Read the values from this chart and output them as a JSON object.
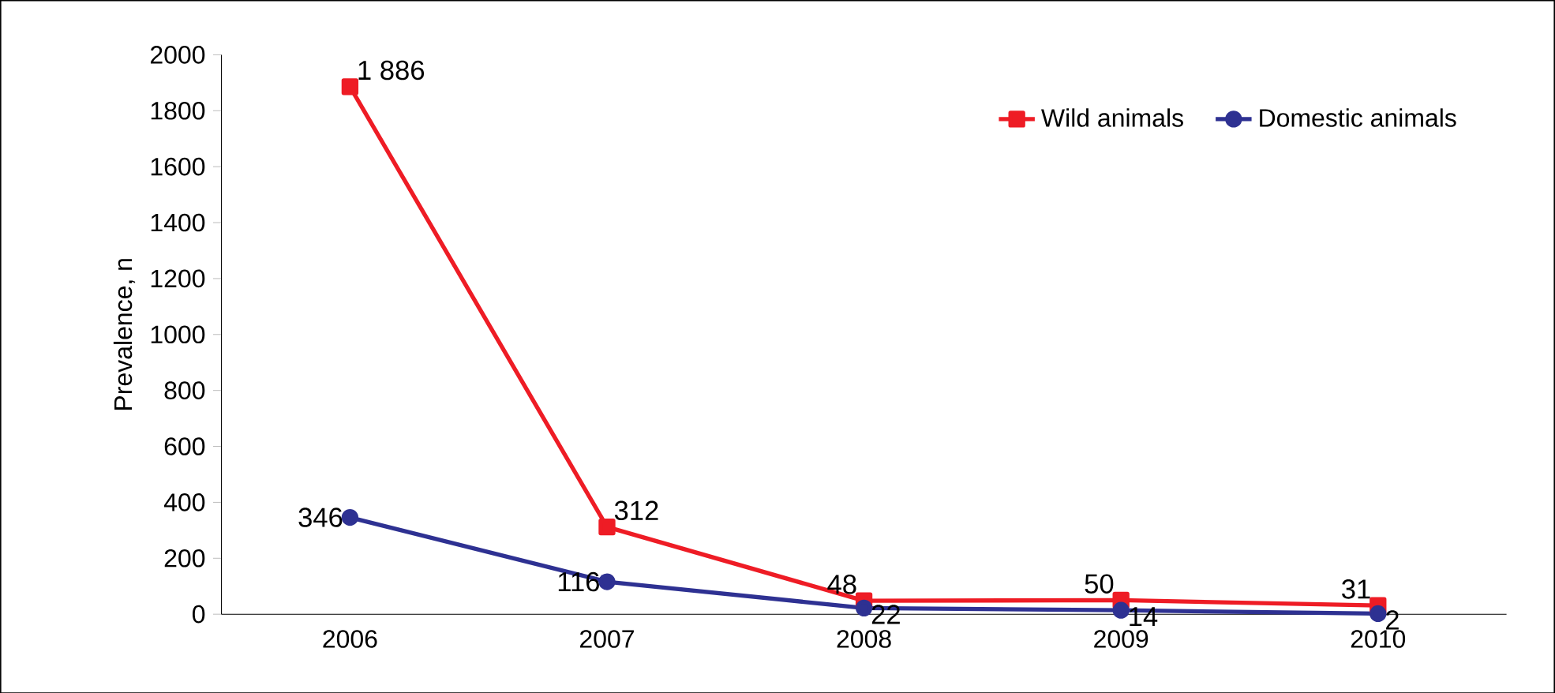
{
  "chart_data": {
    "type": "line",
    "ylabel": "Prevalence, n",
    "categories": [
      "2006",
      "2007",
      "2008",
      "2009",
      "2010"
    ],
    "series": [
      {
        "name": "Wild animals",
        "color": "#ee1c25",
        "marker": "square",
        "values": [
          1886,
          312,
          48,
          50,
          31
        ],
        "value_labels": [
          "1 886",
          "312",
          "48",
          "50",
          "31"
        ]
      },
      {
        "name": "Domestic animals",
        "color": "#2e3192",
        "marker": "circle",
        "values": [
          346,
          116,
          22,
          14,
          2
        ],
        "value_labels": [
          "346",
          "116",
          "22",
          "14",
          "2"
        ]
      }
    ],
    "ylim": [
      0,
      2000
    ],
    "yticks": [
      0,
      200,
      400,
      600,
      800,
      1000,
      1200,
      1400,
      1600,
      1800,
      2000
    ],
    "grid": false,
    "legend": "top right",
    "line_style": "solid"
  }
}
